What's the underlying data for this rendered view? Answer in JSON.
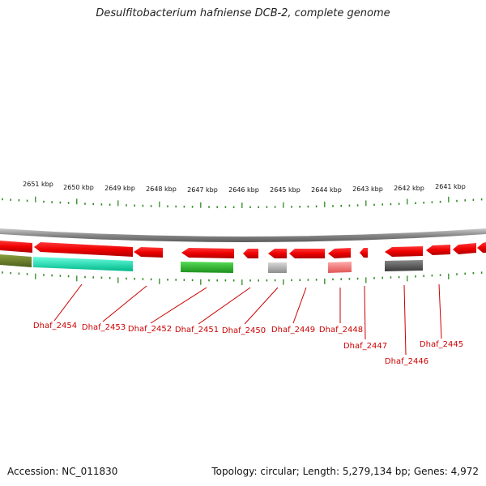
{
  "title": "Desulfitobacterium hafniense DCB-2, complete genome",
  "footer": {
    "accession": "Accession: NC_011830",
    "summary": "Topology: circular; Length: 5,279,134 bp; Genes: 4,972"
  },
  "scale_labels": [
    "2651 kbp",
    "2650 kbp",
    "2649 kbp",
    "2648 kbp",
    "2647 kbp",
    "2646 kbp",
    "2645 kbp",
    "2644 kbp",
    "2643 kbp",
    "2642 kbp",
    "2641 kbp"
  ],
  "gene_labels": [
    "Dhaf_2454",
    "Dhaf_2453",
    "Dhaf_2452",
    "Dhaf_2451",
    "Dhaf_2450",
    "Dhaf_2449",
    "Dhaf_2448",
    "Dhaf_2447",
    "Dhaf_2446",
    "Dhaf_2445"
  ],
  "colors": {
    "gene_red": "#ee1111",
    "label_red": "#cc0000",
    "tick_green": "#2e8b22",
    "backbone": "#888888"
  }
}
